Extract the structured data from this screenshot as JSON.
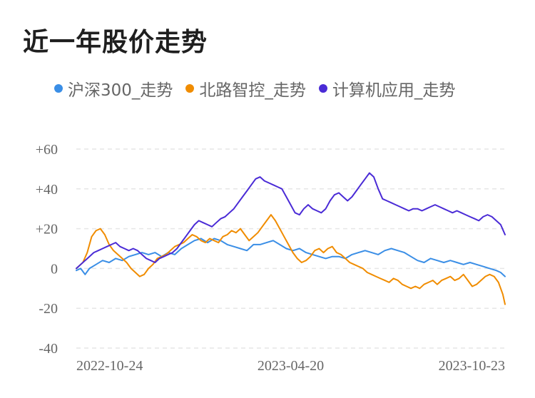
{
  "chart_data": {
    "type": "line",
    "title": "近一年股价走势",
    "xlabel": "",
    "ylabel": "",
    "ylim": [
      -40,
      60
    ],
    "y_ticks": [
      "+60",
      "+40",
      "+20",
      "0",
      "-20",
      "-40"
    ],
    "x_ticks": [
      "2022-10-24",
      "2023-04-20",
      "2023-10-23"
    ],
    "grid": true,
    "legend_position": "top",
    "series": [
      {
        "name": "沪深300_走势",
        "color": "#3a8ee6",
        "points": [
          [
            0,
            -1
          ],
          [
            2,
            0
          ],
          [
            4,
            -3
          ],
          [
            6,
            0
          ],
          [
            9,
            2
          ],
          [
            12,
            4
          ],
          [
            15,
            3
          ],
          [
            18,
            5
          ],
          [
            21,
            4
          ],
          [
            24,
            6
          ],
          [
            27,
            7
          ],
          [
            30,
            8
          ],
          [
            33,
            7
          ],
          [
            36,
            8
          ],
          [
            39,
            6
          ],
          [
            42,
            8
          ],
          [
            45,
            7
          ],
          [
            48,
            10
          ],
          [
            51,
            12
          ],
          [
            54,
            14
          ],
          [
            57,
            15
          ],
          [
            60,
            13
          ],
          [
            63,
            15
          ],
          [
            66,
            14
          ],
          [
            69,
            12
          ],
          [
            72,
            11
          ],
          [
            75,
            10
          ],
          [
            78,
            9
          ],
          [
            81,
            12
          ],
          [
            84,
            12
          ],
          [
            87,
            13
          ],
          [
            90,
            14
          ],
          [
            93,
            12
          ],
          [
            96,
            10
          ],
          [
            99,
            9
          ],
          [
            102,
            10
          ],
          [
            105,
            8
          ],
          [
            108,
            7
          ],
          [
            111,
            6
          ],
          [
            114,
            5
          ],
          [
            117,
            6
          ],
          [
            120,
            6
          ],
          [
            123,
            5
          ],
          [
            126,
            7
          ],
          [
            129,
            8
          ],
          [
            132,
            9
          ],
          [
            135,
            8
          ],
          [
            138,
            7
          ],
          [
            141,
            9
          ],
          [
            144,
            10
          ],
          [
            147,
            9
          ],
          [
            150,
            8
          ],
          [
            153,
            6
          ],
          [
            156,
            4
          ],
          [
            159,
            3
          ],
          [
            162,
            5
          ],
          [
            165,
            4
          ],
          [
            168,
            3
          ],
          [
            171,
            4
          ],
          [
            174,
            3
          ],
          [
            177,
            2
          ],
          [
            180,
            3
          ],
          [
            183,
            2
          ],
          [
            186,
            1
          ],
          [
            189,
            0
          ],
          [
            192,
            -1
          ],
          [
            194,
            -2
          ],
          [
            196,
            -4
          ]
        ]
      },
      {
        "name": "北路智控_走势",
        "color": "#f08c00",
        "points": [
          [
            0,
            0
          ],
          [
            3,
            3
          ],
          [
            5,
            8
          ],
          [
            7,
            16
          ],
          [
            9,
            19
          ],
          [
            11,
            20
          ],
          [
            13,
            17
          ],
          [
            15,
            12
          ],
          [
            17,
            9
          ],
          [
            19,
            7
          ],
          [
            21,
            5
          ],
          [
            23,
            3
          ],
          [
            25,
            0
          ],
          [
            27,
            -2
          ],
          [
            29,
            -4
          ],
          [
            31,
            -3
          ],
          [
            33,
            0
          ],
          [
            35,
            2
          ],
          [
            37,
            5
          ],
          [
            39,
            6
          ],
          [
            41,
            7
          ],
          [
            43,
            9
          ],
          [
            45,
            11
          ],
          [
            47,
            12
          ],
          [
            49,
            13
          ],
          [
            51,
            15
          ],
          [
            53,
            17
          ],
          [
            55,
            16
          ],
          [
            57,
            14
          ],
          [
            59,
            13
          ],
          [
            61,
            15
          ],
          [
            63,
            14
          ],
          [
            65,
            13
          ],
          [
            67,
            16
          ],
          [
            69,
            17
          ],
          [
            71,
            19
          ],
          [
            73,
            18
          ],
          [
            75,
            20
          ],
          [
            77,
            17
          ],
          [
            79,
            14
          ],
          [
            81,
            16
          ],
          [
            83,
            18
          ],
          [
            85,
            21
          ],
          [
            87,
            24
          ],
          [
            89,
            27
          ],
          [
            91,
            24
          ],
          [
            93,
            20
          ],
          [
            95,
            16
          ],
          [
            97,
            12
          ],
          [
            99,
            8
          ],
          [
            101,
            5
          ],
          [
            103,
            3
          ],
          [
            105,
            4
          ],
          [
            107,
            6
          ],
          [
            109,
            9
          ],
          [
            111,
            10
          ],
          [
            113,
            8
          ],
          [
            115,
            10
          ],
          [
            117,
            11
          ],
          [
            119,
            8
          ],
          [
            121,
            7
          ],
          [
            123,
            5
          ],
          [
            125,
            3
          ],
          [
            127,
            2
          ],
          [
            129,
            1
          ],
          [
            131,
            0
          ],
          [
            133,
            -2
          ],
          [
            135,
            -3
          ],
          [
            137,
            -4
          ],
          [
            139,
            -5
          ],
          [
            141,
            -6
          ],
          [
            143,
            -7
          ],
          [
            145,
            -5
          ],
          [
            147,
            -6
          ],
          [
            149,
            -8
          ],
          [
            151,
            -9
          ],
          [
            153,
            -10
          ],
          [
            155,
            -9
          ],
          [
            157,
            -10
          ],
          [
            159,
            -8
          ],
          [
            161,
            -7
          ],
          [
            163,
            -6
          ],
          [
            165,
            -8
          ],
          [
            167,
            -6
          ],
          [
            169,
            -5
          ],
          [
            171,
            -4
          ],
          [
            173,
            -6
          ],
          [
            175,
            -5
          ],
          [
            177,
            -3
          ],
          [
            179,
            -6
          ],
          [
            181,
            -9
          ],
          [
            183,
            -8
          ],
          [
            185,
            -6
          ],
          [
            187,
            -4
          ],
          [
            189,
            -3
          ],
          [
            191,
            -4
          ],
          [
            193,
            -7
          ],
          [
            195,
            -13
          ],
          [
            196,
            -18
          ]
        ]
      },
      {
        "name": "计算机应用_走势",
        "color": "#4a2bd6",
        "points": [
          [
            0,
            0
          ],
          [
            2,
            2
          ],
          [
            4,
            4
          ],
          [
            6,
            6
          ],
          [
            8,
            8
          ],
          [
            10,
            9
          ],
          [
            12,
            10
          ],
          [
            14,
            11
          ],
          [
            16,
            12
          ],
          [
            18,
            13
          ],
          [
            20,
            11
          ],
          [
            22,
            10
          ],
          [
            24,
            9
          ],
          [
            26,
            10
          ],
          [
            28,
            9
          ],
          [
            30,
            7
          ],
          [
            32,
            5
          ],
          [
            34,
            4
          ],
          [
            36,
            3
          ],
          [
            38,
            5
          ],
          [
            40,
            6
          ],
          [
            42,
            7
          ],
          [
            44,
            8
          ],
          [
            46,
            10
          ],
          [
            48,
            13
          ],
          [
            50,
            16
          ],
          [
            52,
            19
          ],
          [
            54,
            22
          ],
          [
            56,
            24
          ],
          [
            58,
            23
          ],
          [
            60,
            22
          ],
          [
            62,
            21
          ],
          [
            64,
            23
          ],
          [
            66,
            25
          ],
          [
            68,
            26
          ],
          [
            70,
            28
          ],
          [
            72,
            30
          ],
          [
            74,
            33
          ],
          [
            76,
            36
          ],
          [
            78,
            39
          ],
          [
            80,
            42
          ],
          [
            82,
            45
          ],
          [
            84,
            46
          ],
          [
            86,
            44
          ],
          [
            88,
            43
          ],
          [
            90,
            42
          ],
          [
            92,
            41
          ],
          [
            94,
            40
          ],
          [
            96,
            36
          ],
          [
            98,
            32
          ],
          [
            100,
            28
          ],
          [
            102,
            27
          ],
          [
            104,
            30
          ],
          [
            106,
            32
          ],
          [
            108,
            30
          ],
          [
            110,
            29
          ],
          [
            112,
            28
          ],
          [
            114,
            30
          ],
          [
            116,
            34
          ],
          [
            118,
            37
          ],
          [
            120,
            38
          ],
          [
            122,
            36
          ],
          [
            124,
            34
          ],
          [
            126,
            36
          ],
          [
            128,
            39
          ],
          [
            130,
            42
          ],
          [
            132,
            45
          ],
          [
            134,
            48
          ],
          [
            136,
            46
          ],
          [
            138,
            40
          ],
          [
            140,
            35
          ],
          [
            142,
            34
          ],
          [
            144,
            33
          ],
          [
            146,
            32
          ],
          [
            148,
            31
          ],
          [
            150,
            30
          ],
          [
            152,
            29
          ],
          [
            154,
            30
          ],
          [
            156,
            30
          ],
          [
            158,
            29
          ],
          [
            160,
            30
          ],
          [
            162,
            31
          ],
          [
            164,
            32
          ],
          [
            166,
            31
          ],
          [
            168,
            30
          ],
          [
            170,
            29
          ],
          [
            172,
            28
          ],
          [
            174,
            29
          ],
          [
            176,
            28
          ],
          [
            178,
            27
          ],
          [
            180,
            26
          ],
          [
            182,
            25
          ],
          [
            184,
            24
          ],
          [
            186,
            26
          ],
          [
            188,
            27
          ],
          [
            190,
            26
          ],
          [
            192,
            24
          ],
          [
            194,
            22
          ],
          [
            196,
            17
          ]
        ]
      }
    ]
  }
}
